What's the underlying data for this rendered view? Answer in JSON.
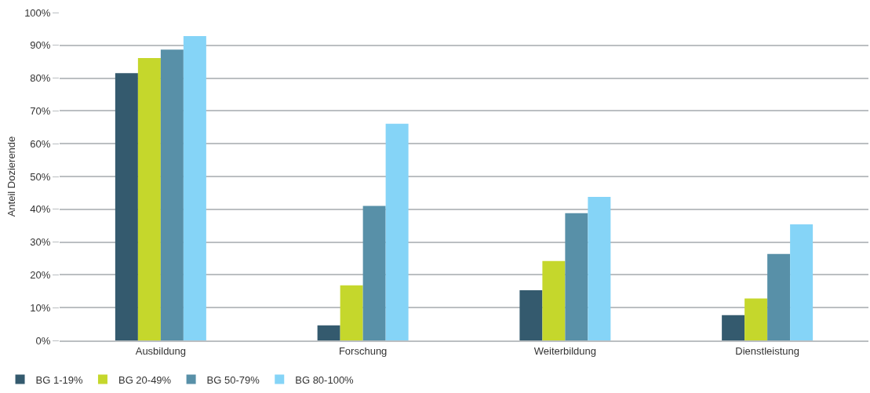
{
  "chart_data": {
    "type": "bar",
    "ylabel": "Anteil Dozierende",
    "categories": [
      "Ausbildung",
      "Forschung",
      "Weiterbildung",
      "Dienstleistung"
    ],
    "series": [
      {
        "name": "BG 1-19%",
        "color": "#345a6e",
        "values": [
          81.5,
          4.6,
          15.3,
          7.7
        ]
      },
      {
        "name": "BG 20-49%",
        "color": "#c5d72c",
        "values": [
          86.1,
          16.8,
          24.2,
          12.8
        ]
      },
      {
        "name": "BG 50-79%",
        "color": "#5890a8",
        "values": [
          88.7,
          41,
          38.8,
          26.4
        ]
      },
      {
        "name": "BG 80-100%",
        "color": "#85d4f7",
        "values": [
          92.8,
          66.1,
          43.8,
          35.4
        ]
      }
    ],
    "ylim": [
      0,
      100
    ],
    "yticks": [
      {
        "value": 0,
        "label": "0%"
      },
      {
        "value": 10,
        "label": "10%"
      },
      {
        "value": 20,
        "label": "20%"
      },
      {
        "value": 30,
        "label": "30%"
      },
      {
        "value": 40,
        "label": "40%"
      },
      {
        "value": 50,
        "label": "50%"
      },
      {
        "value": 60,
        "label": "60%"
      },
      {
        "value": 70,
        "label": "70%"
      },
      {
        "value": 80,
        "label": "80%"
      },
      {
        "value": 90,
        "label": "90%"
      },
      {
        "value": 100,
        "label": "100%"
      }
    ],
    "grid": "y",
    "legend": "bottom left"
  }
}
